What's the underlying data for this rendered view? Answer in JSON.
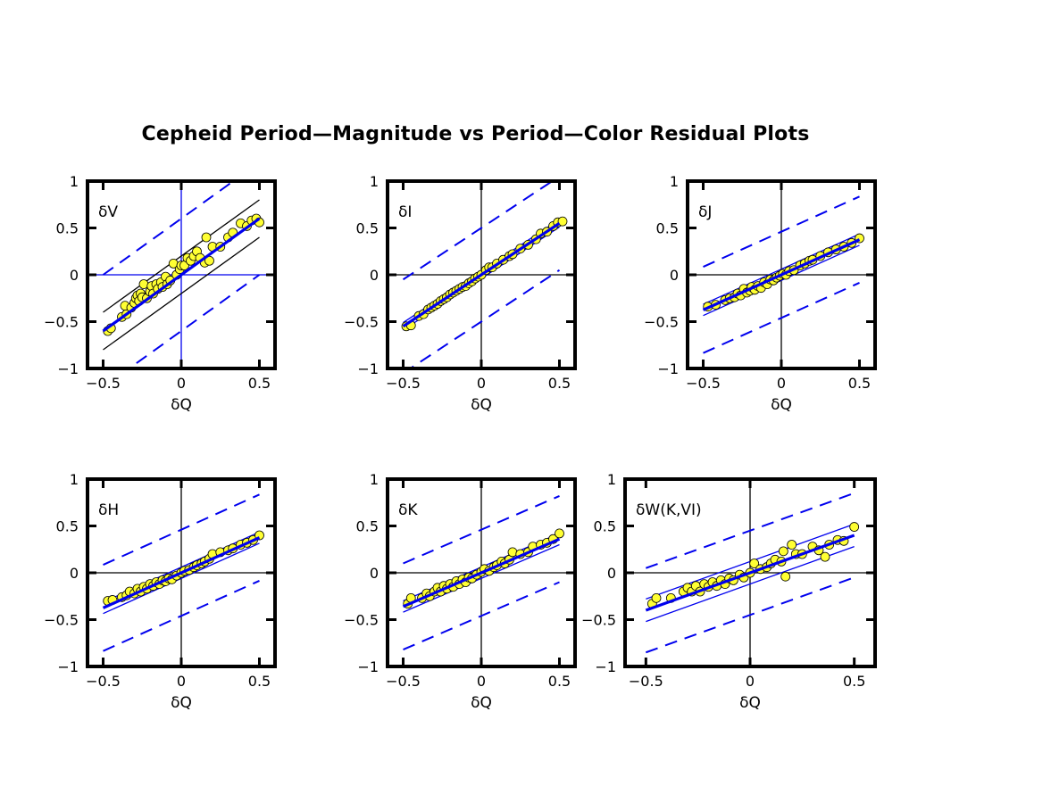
{
  "title": "Cepheid Period—Magnitude vs Period—Color Residual Plots",
  "colors": {
    "points": "#ffff33",
    "line": "#0000ee",
    "axis": "#000000"
  },
  "chart_data": [
    {
      "type": "scatter",
      "panel_label": "δV",
      "xlabel": "δQ",
      "ylabel": "",
      "xlim": [
        -0.6,
        0.6
      ],
      "ylim": [
        -1,
        1
      ],
      "xticks": [
        "-0.5",
        "0",
        "0.5"
      ],
      "yticks": [
        "-1",
        "-0.5",
        "0",
        "0.5",
        "1"
      ],
      "zero_lines_color": "#0000ee",
      "fit": {
        "slope": 1.2,
        "intercept": 0.0
      },
      "inner_band": {
        "offset": 0.2,
        "color": "#000000"
      },
      "outer_band": {
        "offset": 0.6,
        "color": "#0000ee",
        "dashed": true
      },
      "points": [
        [
          -0.47,
          -0.6
        ],
        [
          -0.45,
          -0.57
        ],
        [
          -0.38,
          -0.45
        ],
        [
          -0.35,
          -0.42
        ],
        [
          -0.36,
          -0.33
        ],
        [
          -0.32,
          -0.35
        ],
        [
          -0.3,
          -0.3
        ],
        [
          -0.29,
          -0.25
        ],
        [
          -0.28,
          -0.22
        ],
        [
          -0.27,
          -0.28
        ],
        [
          -0.26,
          -0.2
        ],
        [
          -0.25,
          -0.24
        ],
        [
          -0.24,
          -0.1
        ],
        [
          -0.22,
          -0.25
        ],
        [
          -0.2,
          -0.18
        ],
        [
          -0.19,
          -0.12
        ],
        [
          -0.18,
          -0.2
        ],
        [
          -0.16,
          -0.1
        ],
        [
          -0.15,
          -0.15
        ],
        [
          -0.13,
          -0.08
        ],
        [
          -0.12,
          -0.13
        ],
        [
          -0.1,
          -0.02
        ],
        [
          -0.09,
          -0.1
        ],
        [
          -0.07,
          -0.06
        ],
        [
          -0.05,
          0.12
        ],
        [
          -0.03,
          0.0
        ],
        [
          -0.01,
          0.06
        ],
        [
          0.0,
          0.1
        ],
        [
          0.02,
          0.1
        ],
        [
          0.04,
          0.18
        ],
        [
          0.06,
          0.15
        ],
        [
          0.08,
          0.2
        ],
        [
          0.1,
          0.25
        ],
        [
          0.12,
          0.18
        ],
        [
          0.15,
          0.13
        ],
        [
          0.16,
          0.4
        ],
        [
          0.18,
          0.15
        ],
        [
          0.2,
          0.3
        ],
        [
          0.25,
          0.3
        ],
        [
          0.3,
          0.4
        ],
        [
          0.33,
          0.45
        ],
        [
          0.38,
          0.55
        ],
        [
          0.42,
          0.52
        ],
        [
          0.45,
          0.58
        ],
        [
          0.48,
          0.6
        ],
        [
          0.5,
          0.56
        ]
      ]
    },
    {
      "type": "scatter",
      "panel_label": "δI",
      "xlabel": "δQ",
      "ylabel": "",
      "xlim": [
        -0.6,
        0.6
      ],
      "ylim": [
        -1,
        1
      ],
      "xticks": [
        "-0.5",
        "0",
        "0.5"
      ],
      "yticks": [
        "-1",
        "-0.5",
        "0",
        "0.5",
        "1"
      ],
      "zero_lines_color": "#000000",
      "fit": {
        "slope": 1.1,
        "intercept": 0.0
      },
      "inner_band": {
        "offset": 0.04,
        "color": "#0000ee"
      },
      "outer_band": {
        "offset": 0.5,
        "color": "#0000ee",
        "dashed": true
      },
      "points": [
        [
          -0.48,
          -0.55
        ],
        [
          -0.45,
          -0.54
        ],
        [
          -0.4,
          -0.44
        ],
        [
          -0.37,
          -0.42
        ],
        [
          -0.34,
          -0.37
        ],
        [
          -0.32,
          -0.35
        ],
        [
          -0.3,
          -0.33
        ],
        [
          -0.28,
          -0.31
        ],
        [
          -0.26,
          -0.28
        ],
        [
          -0.24,
          -0.26
        ],
        [
          -0.22,
          -0.24
        ],
        [
          -0.2,
          -0.21
        ],
        [
          -0.18,
          -0.19
        ],
        [
          -0.16,
          -0.17
        ],
        [
          -0.14,
          -0.15
        ],
        [
          -0.12,
          -0.13
        ],
        [
          -0.1,
          -0.12
        ],
        [
          -0.08,
          -0.09
        ],
        [
          -0.06,
          -0.07
        ],
        [
          -0.04,
          -0.04
        ],
        [
          -0.02,
          -0.02
        ],
        [
          0.0,
          0.0
        ],
        [
          0.03,
          0.05
        ],
        [
          0.05,
          0.08
        ],
        [
          0.07,
          0.08
        ],
        [
          0.1,
          0.12
        ],
        [
          0.14,
          0.16
        ],
        [
          0.18,
          0.2
        ],
        [
          0.2,
          0.22
        ],
        [
          0.25,
          0.28
        ],
        [
          0.3,
          0.32
        ],
        [
          0.35,
          0.38
        ],
        [
          0.38,
          0.44
        ],
        [
          0.42,
          0.46
        ],
        [
          0.46,
          0.52
        ],
        [
          0.49,
          0.56
        ],
        [
          0.52,
          0.57
        ]
      ]
    },
    {
      "type": "scatter",
      "panel_label": "δJ",
      "xlabel": "δQ",
      "ylabel": "",
      "xlim": [
        -0.6,
        0.6
      ],
      "ylim": [
        -1,
        1
      ],
      "xticks": [
        "-0.5",
        "0",
        "0.5"
      ],
      "yticks": [
        "-1",
        "-0.5",
        "0",
        "0.5",
        "1"
      ],
      "zero_lines_color": "#000000",
      "fit": {
        "slope": 0.75,
        "intercept": 0.0
      },
      "inner_band": {
        "offset": 0.06,
        "color": "#0000ee"
      },
      "outer_band": {
        "offset": 0.46,
        "color": "#0000ee",
        "dashed": true
      },
      "points": [
        [
          -0.47,
          -0.34
        ],
        [
          -0.42,
          -0.32
        ],
        [
          -0.36,
          -0.27
        ],
        [
          -0.33,
          -0.25
        ],
        [
          -0.3,
          -0.24
        ],
        [
          -0.28,
          -0.2
        ],
        [
          -0.26,
          -0.22
        ],
        [
          -0.24,
          -0.15
        ],
        [
          -0.22,
          -0.19
        ],
        [
          -0.2,
          -0.17
        ],
        [
          -0.19,
          -0.13
        ],
        [
          -0.17,
          -0.16
        ],
        [
          -0.15,
          -0.12
        ],
        [
          -0.13,
          -0.14
        ],
        [
          -0.11,
          -0.08
        ],
        [
          -0.09,
          -0.1
        ],
        [
          -0.07,
          -0.05
        ],
        [
          -0.05,
          -0.06
        ],
        [
          -0.03,
          -0.03
        ],
        [
          -0.01,
          -0.01
        ],
        [
          0.01,
          0.01
        ],
        [
          0.03,
          0.0
        ],
        [
          0.05,
          0.04
        ],
        [
          0.08,
          0.05
        ],
        [
          0.12,
          0.1
        ],
        [
          0.15,
          0.12
        ],
        [
          0.18,
          0.15
        ],
        [
          0.2,
          0.16
        ],
        [
          0.25,
          0.2
        ],
        [
          0.3,
          0.24
        ],
        [
          0.35,
          0.27
        ],
        [
          0.4,
          0.3
        ],
        [
          0.45,
          0.34
        ],
        [
          0.5,
          0.39
        ]
      ]
    },
    {
      "type": "scatter",
      "panel_label": "δH",
      "xlabel": "δQ",
      "ylabel": "",
      "xlim": [
        -0.6,
        0.6
      ],
      "ylim": [
        -1,
        1
      ],
      "xticks": [
        "-0.5",
        "0",
        "0.5"
      ],
      "yticks": [
        "-1",
        "-0.5",
        "0",
        "0.5",
        "1"
      ],
      "zero_lines_color": "#000000",
      "fit": {
        "slope": 0.75,
        "intercept": 0.0
      },
      "inner_band": {
        "offset": 0.06,
        "color": "#0000ee"
      },
      "outer_band": {
        "offset": 0.46,
        "color": "#0000ee",
        "dashed": true
      },
      "points": [
        [
          -0.47,
          -0.3
        ],
        [
          -0.44,
          -0.29
        ],
        [
          -0.38,
          -0.26
        ],
        [
          -0.35,
          -0.24
        ],
        [
          -0.33,
          -0.2
        ],
        [
          -0.3,
          -0.22
        ],
        [
          -0.28,
          -0.17
        ],
        [
          -0.26,
          -0.2
        ],
        [
          -0.24,
          -0.15
        ],
        [
          -0.22,
          -0.17
        ],
        [
          -0.2,
          -0.12
        ],
        [
          -0.18,
          -0.14
        ],
        [
          -0.16,
          -0.1
        ],
        [
          -0.14,
          -0.12
        ],
        [
          -0.12,
          -0.08
        ],
        [
          -0.1,
          -0.09
        ],
        [
          -0.08,
          -0.06
        ],
        [
          -0.06,
          -0.07
        ],
        [
          -0.03,
          -0.03
        ],
        [
          0.0,
          0.0
        ],
        [
          0.02,
          0.02
        ],
        [
          0.05,
          0.03
        ],
        [
          0.08,
          0.06
        ],
        [
          0.1,
          0.08
        ],
        [
          0.13,
          0.1
        ],
        [
          0.15,
          0.12
        ],
        [
          0.18,
          0.15
        ],
        [
          0.2,
          0.2
        ],
        [
          0.25,
          0.22
        ],
        [
          0.3,
          0.24
        ],
        [
          0.33,
          0.26
        ],
        [
          0.38,
          0.3
        ],
        [
          0.42,
          0.32
        ],
        [
          0.46,
          0.35
        ],
        [
          0.5,
          0.4
        ]
      ]
    },
    {
      "type": "scatter",
      "panel_label": "δK",
      "xlabel": "δQ",
      "ylabel": "",
      "xlim": [
        -0.6,
        0.6
      ],
      "ylim": [
        -1,
        1
      ],
      "xticks": [
        "-0.5",
        "0",
        "0.5"
      ],
      "yticks": [
        "-1",
        "-0.5",
        "0",
        "0.5",
        "1"
      ],
      "zero_lines_color": "#000000",
      "fit": {
        "slope": 0.72,
        "intercept": 0.0
      },
      "inner_band": {
        "offset": 0.06,
        "color": "#0000ee"
      },
      "outer_band": {
        "offset": 0.46,
        "color": "#0000ee",
        "dashed": true
      },
      "points": [
        [
          -0.47,
          -0.33
        ],
        [
          -0.45,
          -0.27
        ],
        [
          -0.38,
          -0.27
        ],
        [
          -0.35,
          -0.22
        ],
        [
          -0.33,
          -0.25
        ],
        [
          -0.3,
          -0.2
        ],
        [
          -0.28,
          -0.16
        ],
        [
          -0.26,
          -0.2
        ],
        [
          -0.24,
          -0.14
        ],
        [
          -0.22,
          -0.17
        ],
        [
          -0.2,
          -0.12
        ],
        [
          -0.18,
          -0.15
        ],
        [
          -0.16,
          -0.09
        ],
        [
          -0.14,
          -0.12
        ],
        [
          -0.12,
          -0.07
        ],
        [
          -0.1,
          -0.1
        ],
        [
          -0.08,
          -0.05
        ],
        [
          -0.06,
          -0.06
        ],
        [
          -0.03,
          -0.02
        ],
        [
          0.0,
          0.01
        ],
        [
          0.02,
          0.04
        ],
        [
          0.05,
          0.02
        ],
        [
          0.08,
          0.06
        ],
        [
          0.1,
          0.08
        ],
        [
          0.13,
          0.12
        ],
        [
          0.15,
          0.1
        ],
        [
          0.18,
          0.14
        ],
        [
          0.2,
          0.22
        ],
        [
          0.25,
          0.2
        ],
        [
          0.3,
          0.22
        ],
        [
          0.33,
          0.28
        ],
        [
          0.38,
          0.3
        ],
        [
          0.42,
          0.32
        ],
        [
          0.46,
          0.36
        ],
        [
          0.5,
          0.42
        ]
      ]
    },
    {
      "type": "scatter",
      "panel_label": "δW(K,VI)",
      "xlabel": "δQ",
      "ylabel": "",
      "xlim": [
        -0.6,
        0.6
      ],
      "ylim": [
        -1,
        1
      ],
      "xticks": [
        "-0.5",
        "0",
        "0.5"
      ],
      "yticks": [
        "-1",
        "-0.5",
        "0",
        "0.5",
        "1"
      ],
      "zero_lines_color": "#000000",
      "fit": {
        "slope": 0.8,
        "intercept": 0.0
      },
      "inner_band": {
        "offset": 0.12,
        "color": "#0000ee"
      },
      "outer_band": {
        "offset": 0.45,
        "color": "#0000ee",
        "dashed": true
      },
      "points": [
        [
          -0.47,
          -0.33
        ],
        [
          -0.45,
          -0.27
        ],
        [
          -0.38,
          -0.27
        ],
        [
          -0.32,
          -0.2
        ],
        [
          -0.3,
          -0.16
        ],
        [
          -0.28,
          -0.2
        ],
        [
          -0.26,
          -0.14
        ],
        [
          -0.24,
          -0.2
        ],
        [
          -0.22,
          -0.12
        ],
        [
          -0.2,
          -0.15
        ],
        [
          -0.18,
          -0.1
        ],
        [
          -0.16,
          -0.14
        ],
        [
          -0.14,
          -0.08
        ],
        [
          -0.12,
          -0.12
        ],
        [
          -0.1,
          -0.06
        ],
        [
          -0.08,
          -0.08
        ],
        [
          -0.05,
          -0.02
        ],
        [
          -0.03,
          -0.05
        ],
        [
          0.0,
          0.0
        ],
        [
          0.02,
          0.1
        ],
        [
          0.05,
          0.04
        ],
        [
          0.08,
          0.06
        ],
        [
          0.1,
          0.1
        ],
        [
          0.12,
          0.14
        ],
        [
          0.15,
          0.12
        ],
        [
          0.16,
          0.23
        ],
        [
          0.17,
          -0.04
        ],
        [
          0.2,
          0.3
        ],
        [
          0.22,
          0.2
        ],
        [
          0.25,
          0.2
        ],
        [
          0.3,
          0.28
        ],
        [
          0.33,
          0.24
        ],
        [
          0.36,
          0.17
        ],
        [
          0.38,
          0.3
        ],
        [
          0.42,
          0.35
        ],
        [
          0.45,
          0.34
        ],
        [
          0.5,
          0.49
        ]
      ]
    }
  ]
}
